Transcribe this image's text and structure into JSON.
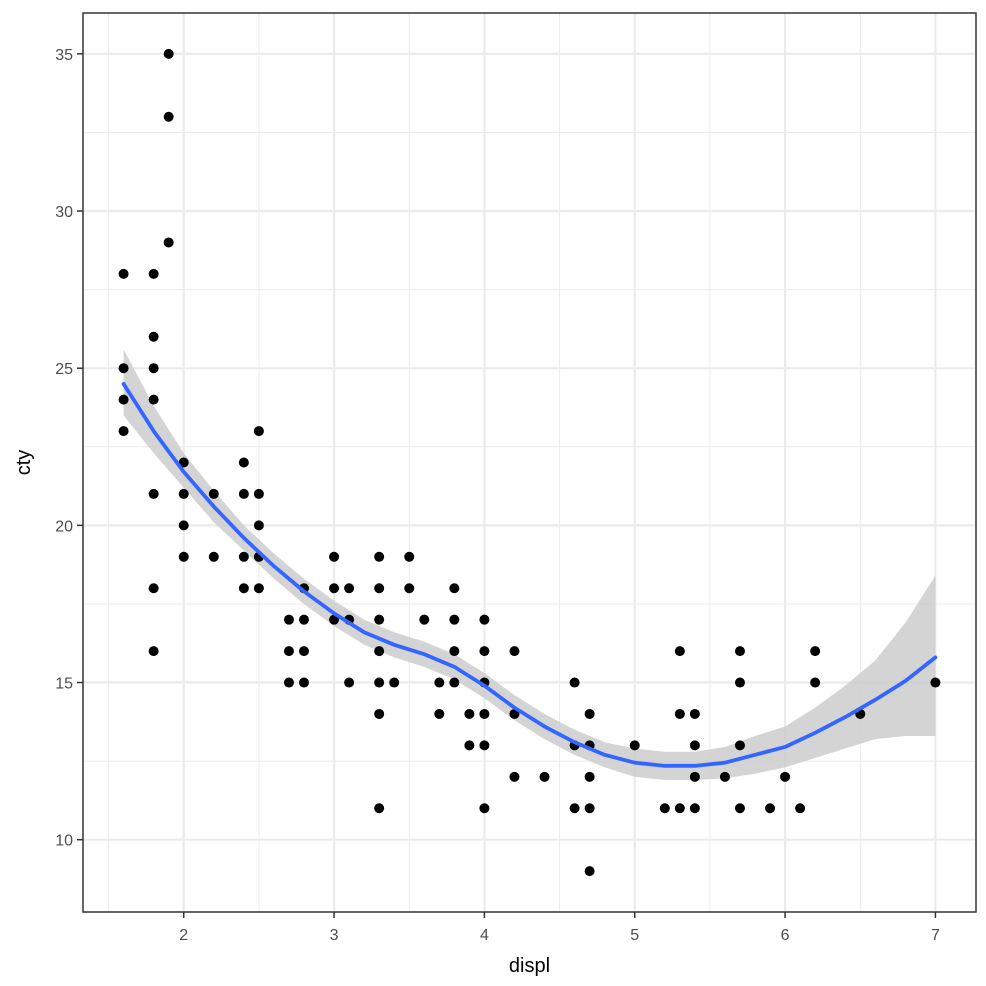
{
  "chart_data": {
    "type": "scatter",
    "title": "",
    "xlabel": "displ",
    "ylabel": "cty",
    "xlim": [
      1.33,
      7.27
    ],
    "ylim": [
      7.7,
      36.3
    ],
    "grid": true,
    "xticks": [
      2,
      3,
      4,
      5,
      6,
      7
    ],
    "yticks": [
      10,
      15,
      20,
      25,
      30,
      35
    ],
    "xtick_labels": [
      "2",
      "3",
      "4",
      "5",
      "6",
      "7"
    ],
    "ytick_labels": [
      "10",
      "15",
      "20",
      "25",
      "30",
      "35"
    ],
    "colors": {
      "points": "#000000",
      "smooth_line": "#3366FF",
      "confidence_band": "#cccccc",
      "grid": "#ebebeb",
      "panel_border": "#333333"
    },
    "points": [
      [
        1.6,
        28
      ],
      [
        1.6,
        25
      ],
      [
        1.6,
        24
      ],
      [
        1.6,
        23
      ],
      [
        1.8,
        28
      ],
      [
        1.8,
        26
      ],
      [
        1.8,
        25
      ],
      [
        1.8,
        24
      ],
      [
        1.8,
        21
      ],
      [
        1.8,
        18
      ],
      [
        1.8,
        16
      ],
      [
        1.9,
        35
      ],
      [
        1.9,
        33
      ],
      [
        1.9,
        29
      ],
      [
        2.0,
        22
      ],
      [
        2.0,
        21
      ],
      [
        2.0,
        20
      ],
      [
        2.0,
        19
      ],
      [
        2.2,
        21
      ],
      [
        2.2,
        19
      ],
      [
        2.4,
        22
      ],
      [
        2.4,
        21
      ],
      [
        2.4,
        19
      ],
      [
        2.4,
        18
      ],
      [
        2.5,
        23
      ],
      [
        2.5,
        21
      ],
      [
        2.5,
        20
      ],
      [
        2.5,
        19
      ],
      [
        2.5,
        18
      ],
      [
        2.7,
        17
      ],
      [
        2.7,
        16
      ],
      [
        2.7,
        15
      ],
      [
        2.8,
        18
      ],
      [
        2.8,
        17
      ],
      [
        2.8,
        16
      ],
      [
        2.8,
        15
      ],
      [
        3.0,
        19
      ],
      [
        3.0,
        18
      ],
      [
        3.0,
        17
      ],
      [
        3.1,
        18
      ],
      [
        3.1,
        17
      ],
      [
        3.1,
        15
      ],
      [
        3.3,
        19
      ],
      [
        3.3,
        18
      ],
      [
        3.3,
        17
      ],
      [
        3.3,
        16
      ],
      [
        3.3,
        15
      ],
      [
        3.3,
        14
      ],
      [
        3.3,
        11
      ],
      [
        3.4,
        15
      ],
      [
        3.5,
        19
      ],
      [
        3.5,
        18
      ],
      [
        3.6,
        17
      ],
      [
        3.7,
        15
      ],
      [
        3.7,
        14
      ],
      [
        3.8,
        18
      ],
      [
        3.8,
        17
      ],
      [
        3.8,
        16
      ],
      [
        3.8,
        15
      ],
      [
        3.9,
        14
      ],
      [
        3.9,
        13
      ],
      [
        4.0,
        17
      ],
      [
        4.0,
        16
      ],
      [
        4.0,
        15
      ],
      [
        4.0,
        14
      ],
      [
        4.0,
        13
      ],
      [
        4.0,
        11
      ],
      [
        4.2,
        16
      ],
      [
        4.2,
        14
      ],
      [
        4.2,
        12
      ],
      [
        4.4,
        12
      ],
      [
        4.6,
        15
      ],
      [
        4.6,
        13
      ],
      [
        4.6,
        11
      ],
      [
        4.7,
        14
      ],
      [
        4.7,
        13
      ],
      [
        4.7,
        12
      ],
      [
        4.7,
        11
      ],
      [
        4.7,
        9
      ],
      [
        5.0,
        13
      ],
      [
        5.2,
        11
      ],
      [
        5.3,
        16
      ],
      [
        5.3,
        14
      ],
      [
        5.3,
        11
      ],
      [
        5.4,
        14
      ],
      [
        5.4,
        13
      ],
      [
        5.4,
        12
      ],
      [
        5.4,
        11
      ],
      [
        5.6,
        12
      ],
      [
        5.7,
        16
      ],
      [
        5.7,
        15
      ],
      [
        5.7,
        13
      ],
      [
        5.7,
        11
      ],
      [
        5.9,
        11
      ],
      [
        6.0,
        12
      ],
      [
        6.1,
        11
      ],
      [
        6.2,
        16
      ],
      [
        6.2,
        15
      ],
      [
        6.5,
        14
      ],
      [
        7.0,
        15
      ]
    ],
    "smooth": [
      {
        "x": 1.6,
        "y": 24.5,
        "lo": 23.5,
        "hi": 25.6
      },
      {
        "x": 1.8,
        "y": 23.0,
        "lo": 22.3,
        "hi": 23.8
      },
      {
        "x": 2.0,
        "y": 21.7,
        "lo": 21.2,
        "hi": 22.3
      },
      {
        "x": 2.2,
        "y": 20.6,
        "lo": 20.1,
        "hi": 21.1
      },
      {
        "x": 2.4,
        "y": 19.6,
        "lo": 19.2,
        "hi": 20.0
      },
      {
        "x": 2.6,
        "y": 18.7,
        "lo": 18.3,
        "hi": 19.1
      },
      {
        "x": 2.8,
        "y": 17.9,
        "lo": 17.5,
        "hi": 18.3
      },
      {
        "x": 3.0,
        "y": 17.2,
        "lo": 16.8,
        "hi": 17.6
      },
      {
        "x": 3.2,
        "y": 16.6,
        "lo": 16.2,
        "hi": 17.0
      },
      {
        "x": 3.4,
        "y": 16.2,
        "lo": 15.8,
        "hi": 16.6
      },
      {
        "x": 3.6,
        "y": 15.9,
        "lo": 15.5,
        "hi": 16.3
      },
      {
        "x": 3.8,
        "y": 15.5,
        "lo": 15.1,
        "hi": 15.9
      },
      {
        "x": 4.0,
        "y": 14.9,
        "lo": 14.5,
        "hi": 15.3
      },
      {
        "x": 4.2,
        "y": 14.2,
        "lo": 13.8,
        "hi": 14.6
      },
      {
        "x": 4.4,
        "y": 13.6,
        "lo": 13.2,
        "hi": 14.0
      },
      {
        "x": 4.6,
        "y": 13.1,
        "lo": 12.7,
        "hi": 13.5
      },
      {
        "x": 4.8,
        "y": 12.7,
        "lo": 12.3,
        "hi": 13.1
      },
      {
        "x": 5.0,
        "y": 12.45,
        "lo": 12.0,
        "hi": 12.9
      },
      {
        "x": 5.2,
        "y": 12.35,
        "lo": 11.9,
        "hi": 12.8
      },
      {
        "x": 5.4,
        "y": 12.35,
        "lo": 11.9,
        "hi": 12.8
      },
      {
        "x": 5.6,
        "y": 12.45,
        "lo": 11.95,
        "hi": 12.95
      },
      {
        "x": 5.8,
        "y": 12.7,
        "lo": 12.1,
        "hi": 13.3
      },
      {
        "x": 6.0,
        "y": 12.95,
        "lo": 12.3,
        "hi": 13.6
      },
      {
        "x": 6.2,
        "y": 13.4,
        "lo": 12.6,
        "hi": 14.2
      },
      {
        "x": 6.4,
        "y": 13.9,
        "lo": 12.9,
        "hi": 14.9
      },
      {
        "x": 6.6,
        "y": 14.45,
        "lo": 13.2,
        "hi": 15.7
      },
      {
        "x": 6.8,
        "y": 15.05,
        "lo": 13.3,
        "hi": 16.9
      },
      {
        "x": 7.0,
        "y": 15.8,
        "lo": 13.3,
        "hi": 18.4
      }
    ]
  }
}
